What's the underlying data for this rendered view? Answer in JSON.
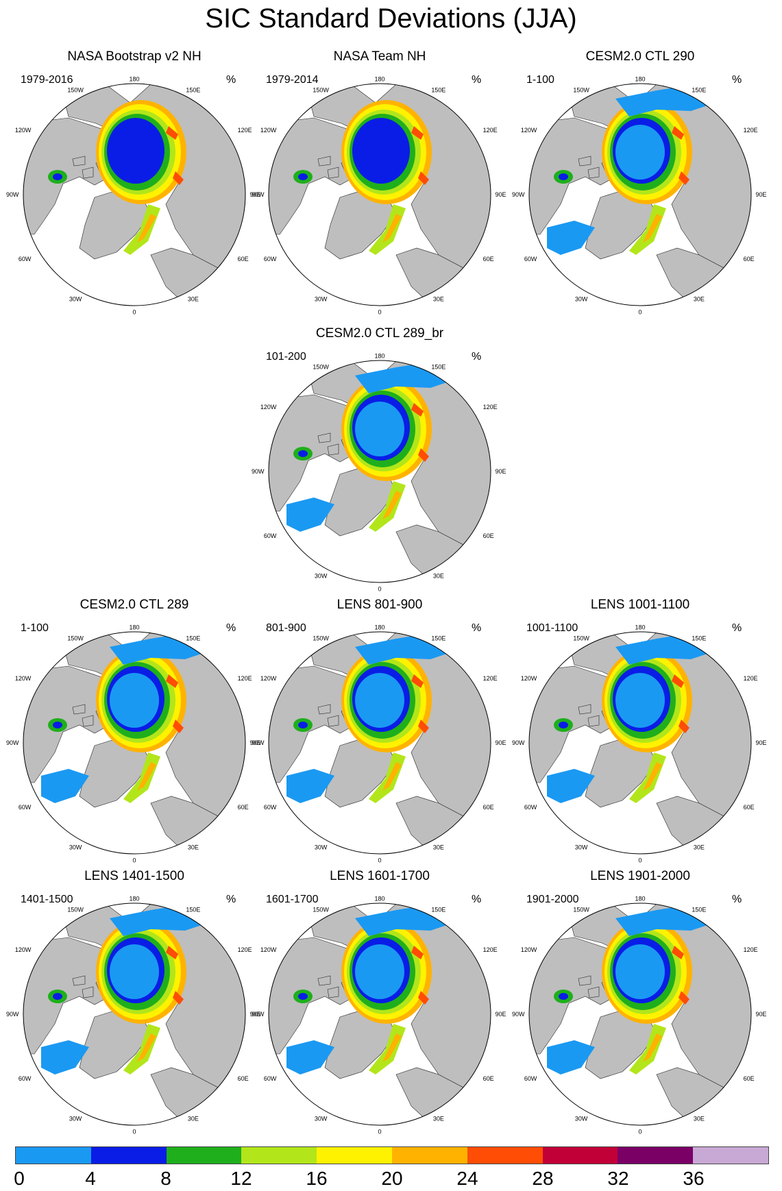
{
  "title": "SIC Standard Deviations (JJA)",
  "legend": {
    "colors": [
      "#1a99f2",
      "#0a1de6",
      "#1faf1c",
      "#b2e61a",
      "#fff200",
      "#ffb300",
      "#ff4d05",
      "#c20038",
      "#7a0066",
      "#c8a8d4"
    ],
    "labels": [
      "0",
      "4",
      "8",
      "12",
      "16",
      "20",
      "24",
      "28",
      "32",
      "36"
    ]
  },
  "map_labels": {
    "north": "180",
    "nw": "150W",
    "ne": "150E",
    "w1": "120W",
    "e1": "120E",
    "w2": "90W",
    "e2": "90E",
    "w3": "60W",
    "e3": "60E",
    "sw": "30W",
    "se": "30E",
    "south": "0"
  },
  "land_color": "#bebebe",
  "panels": [
    {
      "title": "NASA Bootstrap v2 NH",
      "years": "1979-2016",
      "unit": "%",
      "style": "obs-bootstrap"
    },
    {
      "title": "NASA Team NH",
      "years": "1979-2014",
      "unit": "%",
      "style": "obs-team"
    },
    {
      "title": "CESM2.0 CTL 290",
      "years": "1-100",
      "unit": "%",
      "style": "model"
    },
    {
      "title": "CESM2.0 CTL 289_br",
      "years": "101-200",
      "unit": "%",
      "style": "model"
    },
    {
      "title": "CESM2.0 CTL 289",
      "years": "1-100",
      "unit": "%",
      "style": "model"
    },
    {
      "title": "LENS 801-900",
      "years": "801-900",
      "unit": "%",
      "style": "model"
    },
    {
      "title": "LENS 1001-1100",
      "years": "1001-1100",
      "unit": "%",
      "style": "model"
    },
    {
      "title": "LENS 1401-1500",
      "years": "1401-1500",
      "unit": "%",
      "style": "model"
    },
    {
      "title": "LENS 1601-1700",
      "years": "1601-1700",
      "unit": "%",
      "style": "model"
    },
    {
      "title": "LENS 1901-2000",
      "years": "1901-2000",
      "unit": "%",
      "style": "model"
    }
  ]
}
